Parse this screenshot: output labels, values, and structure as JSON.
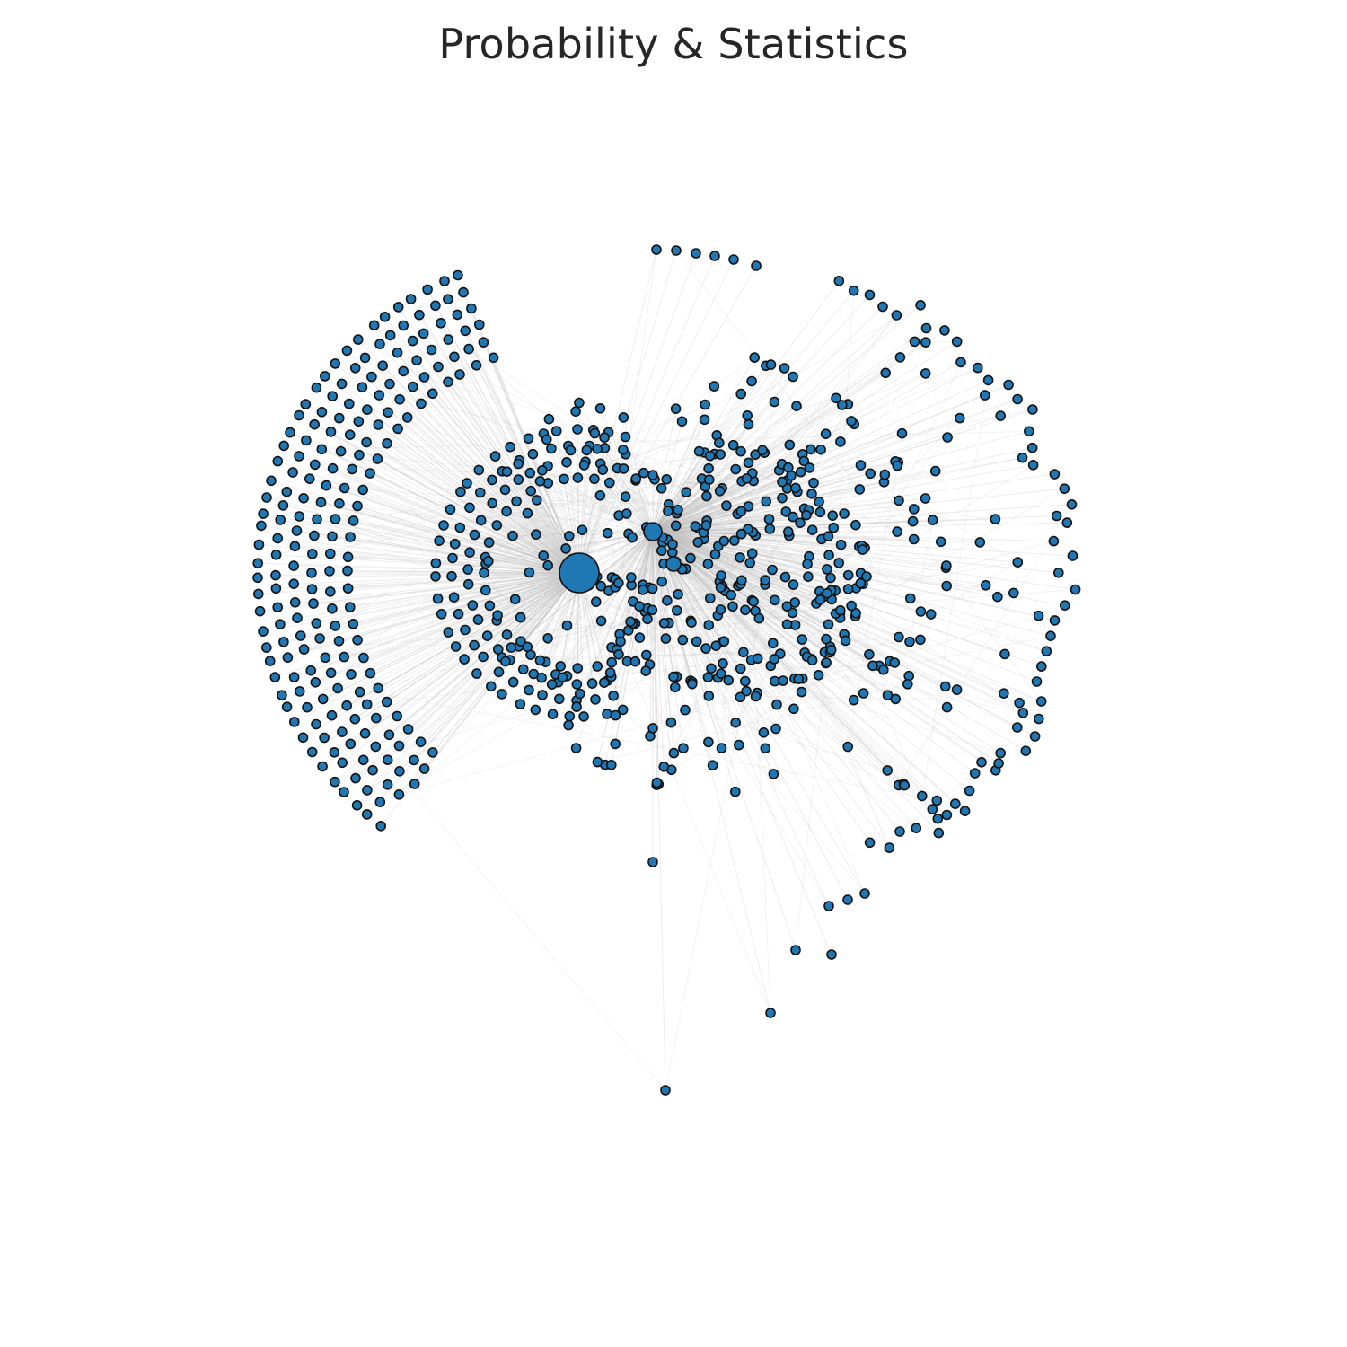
{
  "title": "Probability & Statistics",
  "colors": {
    "background": "#ffffff",
    "node_fill": "#1f77b4",
    "node_stroke": "#111111",
    "edge": "#bfbfbf",
    "title_text": "#262626"
  },
  "network": {
    "hub_count": 3,
    "node_count_estimate": 820,
    "edges_visible": true,
    "node_labels_shown": false
  }
}
